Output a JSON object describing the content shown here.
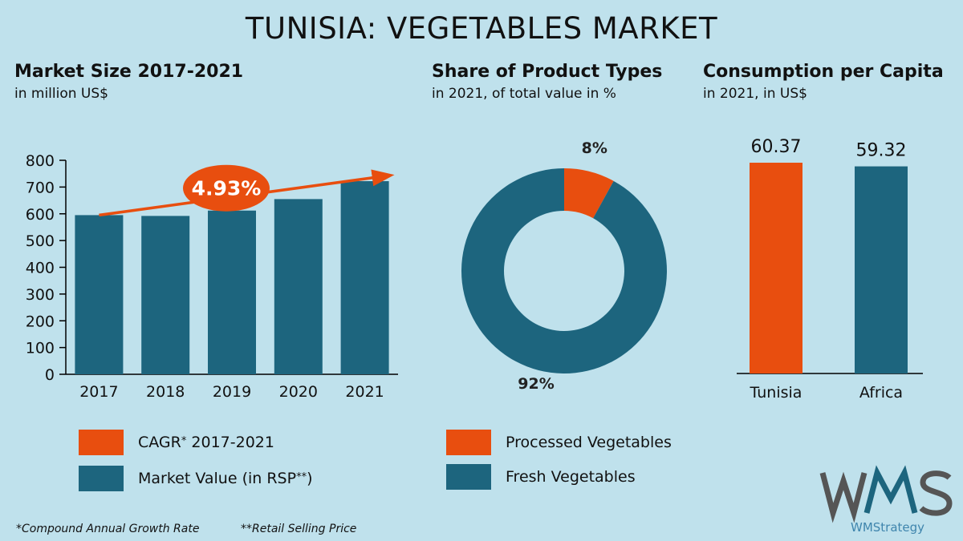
{
  "title": "TUNISIA: VEGETABLES MARKET",
  "colors": {
    "orange": "#e84e0f",
    "teal": "#1d657e",
    "background": "#bfe1ec"
  },
  "sections": {
    "market": {
      "title": "Market Size 2017-2021",
      "subtitle": "in million US$"
    },
    "share": {
      "title": "Share of Product Types",
      "subtitle": "in 2021, of total value in %"
    },
    "consumption": {
      "title": "Consumption per Capita",
      "subtitle": "in 2021, in US$"
    }
  },
  "legend": {
    "cagr_label": "CAGR",
    "cagr_mark": "*",
    "cagr_years": " 2017-2021",
    "market_label": "Market Value (in RSP",
    "market_mark": "**",
    "market_close": ")",
    "processed": "Processed Vegetables",
    "fresh": "Fresh Vegetables"
  },
  "footnotes": {
    "cagr": "*Compound Annual Growth Rate",
    "rsp": "**Retail Selling Price"
  },
  "brand": {
    "logo_text": "WMS",
    "name": "WMStrategy"
  },
  "chart_data": [
    {
      "type": "bar",
      "title": "Market Size 2017-2021",
      "ylabel": "in million US$",
      "categories": [
        "2017",
        "2018",
        "2019",
        "2020",
        "2021"
      ],
      "values": [
        595,
        592,
        612,
        655,
        722
      ],
      "ylim": [
        0,
        800
      ],
      "yticks": [
        0,
        100,
        200,
        300,
        400,
        500,
        600,
        700,
        800
      ],
      "annotation": {
        "label": "4.93%",
        "meaning": "CAGR 2017-2021"
      }
    },
    {
      "type": "pie",
      "title": "Share of Product Types",
      "labels": [
        "Processed Vegetables",
        "Fresh Vegetables"
      ],
      "values": [
        8,
        92
      ],
      "value_labels": [
        "8%",
        "92%"
      ]
    },
    {
      "type": "bar",
      "title": "Consumption per Capita",
      "categories": [
        "Tunisia",
        "Africa"
      ],
      "values": [
        60.37,
        59.32
      ],
      "value_labels": [
        "60.37",
        "59.32"
      ]
    }
  ]
}
